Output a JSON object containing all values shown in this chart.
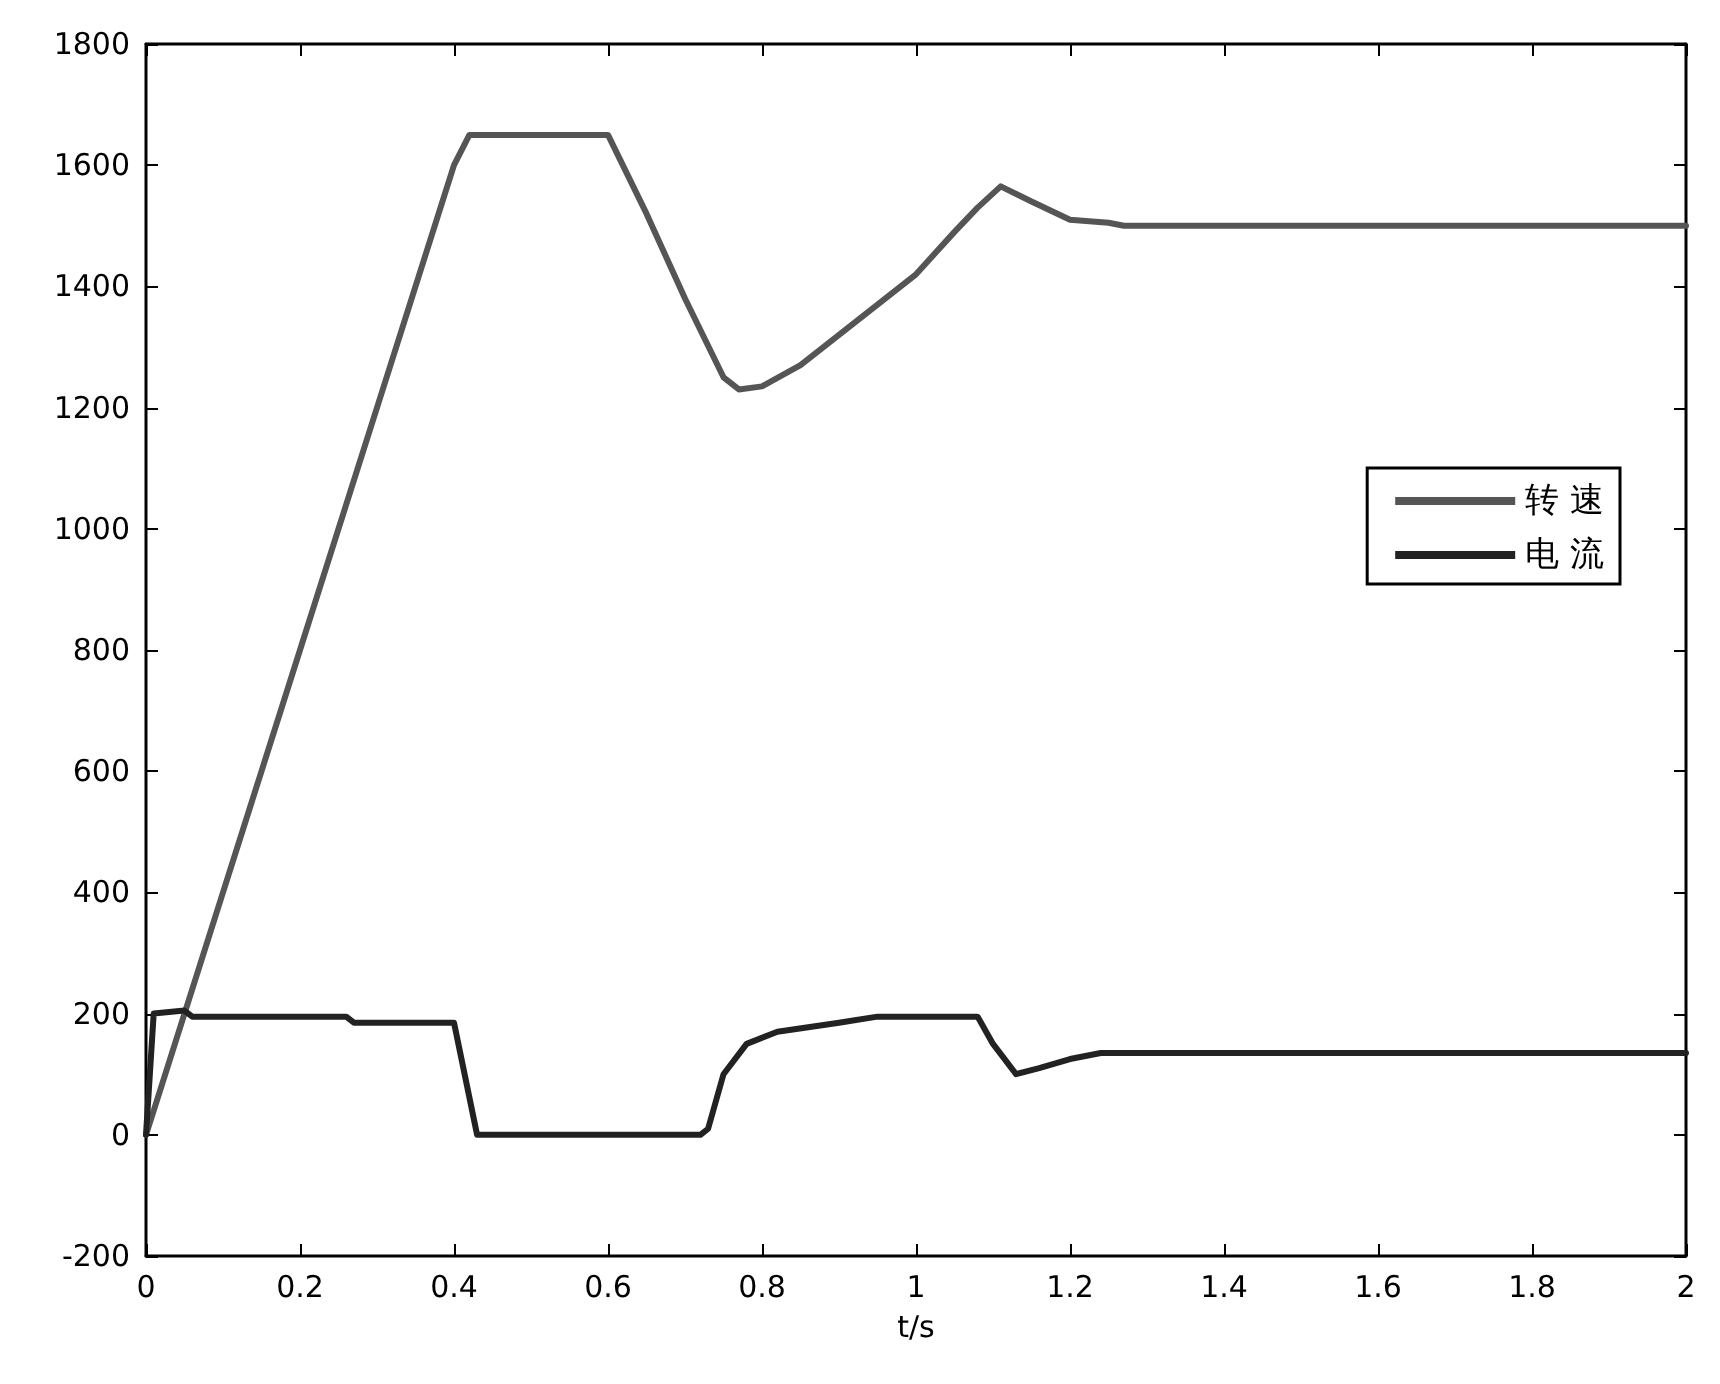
{
  "chart_data": {
    "type": "line",
    "xlabel": "t/s",
    "xlim": [
      0,
      2
    ],
    "xticks": [
      0,
      0.2,
      0.4,
      0.6,
      0.8,
      1,
      1.2,
      1.4,
      1.6,
      1.8,
      2
    ],
    "ylim": [
      -200,
      1800
    ],
    "yticks": [
      -200,
      0,
      200,
      400,
      600,
      800,
      1000,
      1200,
      1400,
      1600,
      1800
    ],
    "grid": false,
    "legend": "right",
    "marker": "none",
    "line_style": "solid",
    "series": [
      {
        "name": "转 速",
        "color": "#555555",
        "x": [
          0,
          0.1,
          0.2,
          0.3,
          0.4,
          0.42,
          0.6,
          0.65,
          0.7,
          0.75,
          0.77,
          0.8,
          0.85,
          0.9,
          0.95,
          1,
          1.05,
          1.08,
          1.11,
          1.15,
          1.2,
          1.25,
          1.27,
          2
        ],
        "values": [
          0,
          400,
          800,
          1200,
          1600,
          1650,
          1650,
          1520,
          1380,
          1250,
          1230,
          1235,
          1270,
          1320,
          1370,
          1420,
          1490,
          1530,
          1565,
          1540,
          1510,
          1505,
          1500,
          1500
        ]
      },
      {
        "name": "电 流",
        "color": "#222222",
        "x": [
          0,
          0.01,
          0.05,
          0.06,
          0.26,
          0.27,
          0.4,
          0.43,
          0.72,
          0.73,
          0.75,
          0.78,
          0.82,
          0.9,
          0.95,
          1.08,
          1.1,
          1.13,
          1.16,
          1.2,
          1.24,
          2
        ],
        "values": [
          0,
          200,
          205,
          195,
          195,
          185,
          185,
          0,
          0,
          10,
          100,
          150,
          170,
          185,
          195,
          195,
          150,
          100,
          110,
          125,
          135,
          135
        ]
      }
    ]
  }
}
